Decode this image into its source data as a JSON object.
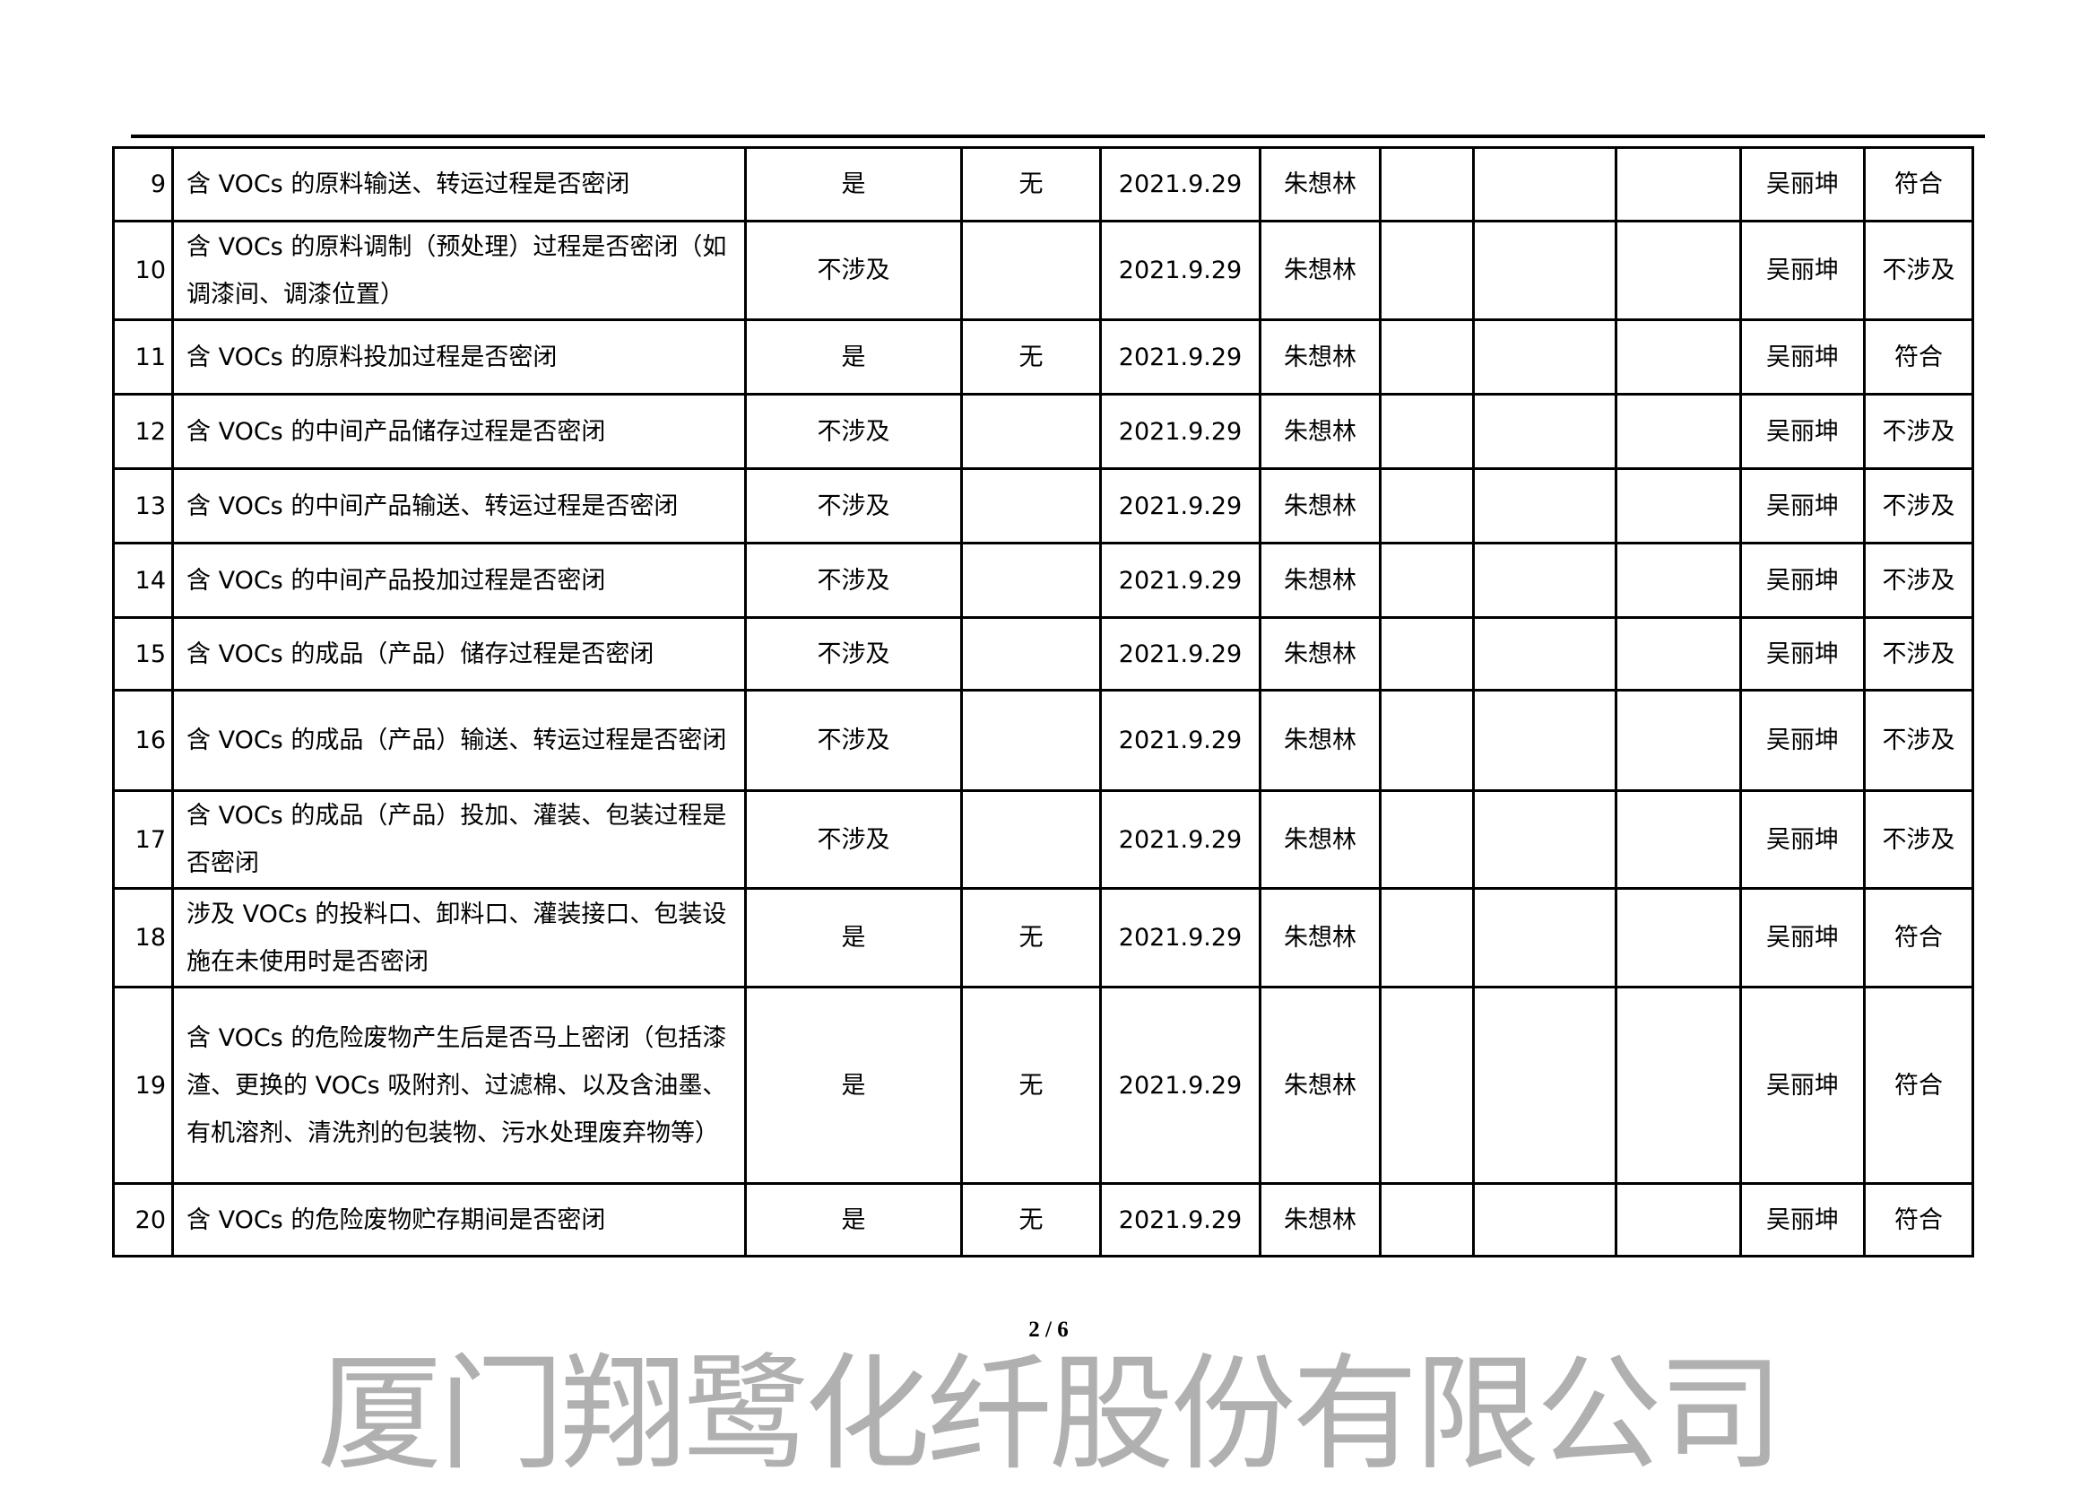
{
  "watermark": "厦门翔鹭化纤股份有限公司",
  "page_number": "2 / 6",
  "rows": [
    {
      "no": "9",
      "item": "含 VOCs 的原料输送、转运过程是否密闭",
      "result": "是",
      "issue": "无",
      "date": "2021.9.29",
      "inspector": "朱想林",
      "reviewer": "吴丽坤",
      "conclusion": "符合"
    },
    {
      "no": "10",
      "item": "含 VOCs 的原料调制（预处理）过程是否密闭（如调漆间、调漆位置）",
      "result": "不涉及",
      "issue": "",
      "date": "2021.9.29",
      "inspector": "朱想林",
      "reviewer": "吴丽坤",
      "conclusion": "不涉及"
    },
    {
      "no": "11",
      "item": "含 VOCs 的原料投加过程是否密闭",
      "result": "是",
      "issue": "无",
      "date": "2021.9.29",
      "inspector": "朱想林",
      "reviewer": "吴丽坤",
      "conclusion": "符合"
    },
    {
      "no": "12",
      "item": "含 VOCs 的中间产品储存过程是否密闭",
      "result": "不涉及",
      "issue": "",
      "date": "2021.9.29",
      "inspector": "朱想林",
      "reviewer": "吴丽坤",
      "conclusion": "不涉及"
    },
    {
      "no": "13",
      "item": "含 VOCs 的中间产品输送、转运过程是否密闭",
      "result": "不涉及",
      "issue": "",
      "date": "2021.9.29",
      "inspector": "朱想林",
      "reviewer": "吴丽坤",
      "conclusion": "不涉及"
    },
    {
      "no": "14",
      "item": "含 VOCs 的中间产品投加过程是否密闭",
      "result": "不涉及",
      "issue": "",
      "date": "2021.9.29",
      "inspector": "朱想林",
      "reviewer": "吴丽坤",
      "conclusion": "不涉及"
    },
    {
      "no": "15",
      "item": "含 VOCs 的成品（产品）储存过程是否密闭",
      "result": "不涉及",
      "issue": "",
      "date": "2021.9.29",
      "inspector": "朱想林",
      "reviewer": "吴丽坤",
      "conclusion": "不涉及"
    },
    {
      "no": "16",
      "item": "含 VOCs 的成品（产品）输送、转运过程是否密闭",
      "result": "不涉及",
      "issue": "",
      "date": "2021.9.29",
      "inspector": "朱想林",
      "reviewer": "吴丽坤",
      "conclusion": "不涉及"
    },
    {
      "no": "17",
      "item": "含 VOCs 的成品（产品）投加、灌装、包装过程是否密闭",
      "result": "不涉及",
      "issue": "",
      "date": "2021.9.29",
      "inspector": "朱想林",
      "reviewer": "吴丽坤",
      "conclusion": "不涉及"
    },
    {
      "no": "18",
      "item": "涉及 VOCs 的投料口、卸料口、灌装接口、包装设施在未使用时是否密闭",
      "result": "是",
      "issue": "无",
      "date": "2021.9.29",
      "inspector": "朱想林",
      "reviewer": "吴丽坤",
      "conclusion": "符合"
    },
    {
      "no": "19",
      "item": "含 VOCs 的危险废物产生后是否马上密闭（包括漆渣、更换的 VOCs 吸附剂、过滤棉、以及含油墨、有机溶剂、清洗剂的包装物、污水处理废弃物等）",
      "result": "是",
      "issue": "无",
      "date": "2021.9.29",
      "inspector": "朱想林",
      "reviewer": "吴丽坤",
      "conclusion": "符合"
    },
    {
      "no": "20",
      "item": "含 VOCs 的危险废物贮存期间是否密闭",
      "result": "是",
      "issue": "无",
      "date": "2021.9.29",
      "inspector": "朱想林",
      "reviewer": "吴丽坤",
      "conclusion": "符合"
    }
  ]
}
